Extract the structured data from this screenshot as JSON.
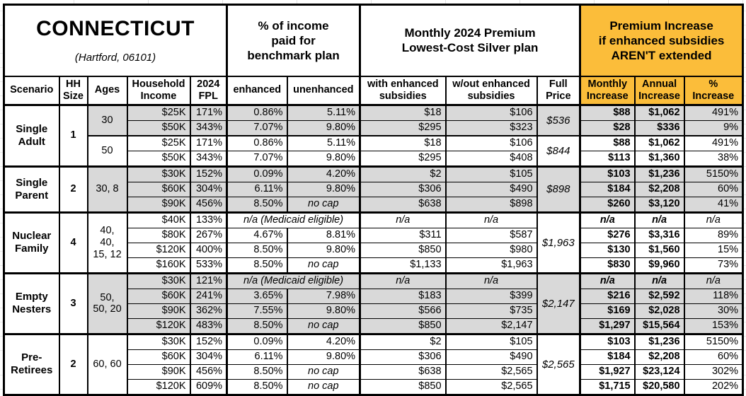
{
  "title": {
    "state": "CONNECTICUT",
    "location": "(Hartford, 06101)"
  },
  "section_headers": {
    "benchmark": "% of income\npaid for\nbenchmark plan",
    "premium": "Monthly 2024 Premium\nLowest-Cost Silver plan",
    "increase": "Premium Increase\nif enhanced subsidies\nAREN'T extended"
  },
  "columns": {
    "scenario": "Scenario",
    "hh_size": "HH\nSize",
    "ages": "Ages",
    "income": "Household\nIncome",
    "fpl": "2024\nFPL",
    "enhanced": "enhanced",
    "unenhanced": "unenhanced",
    "with_sub": "with enhanced\nsubsidies",
    "without_sub": "w/out enhanced\nsubsidies",
    "full_price": "Full\nPrice",
    "monthly": "Monthly\nIncrease",
    "annual": "Annual\nIncrease",
    "pct": "%\nIncrease"
  },
  "colors": {
    "accent": "#FBBD3A",
    "row_gray": "#D9D9D9",
    "border": "#000000"
  },
  "special_values": {
    "medicaid": "n/a (Medicaid eligible)",
    "no_cap": "no cap",
    "na": "n/a"
  },
  "groups": [
    {
      "scenario": "Single Adult",
      "hh_size": "1",
      "subgroups": [
        {
          "ages": "30",
          "shade": "gray",
          "full_price": "$536",
          "rows": [
            {
              "income": "$25K",
              "fpl": "171%",
              "enhanced": "0.86%",
              "unenhanced": "5.11%",
              "with_sub": "$18",
              "without_sub": "$106",
              "monthly": "$88",
              "annual": "$1,062",
              "pct": "491%"
            },
            {
              "income": "$50K",
              "fpl": "343%",
              "enhanced": "7.07%",
              "unenhanced": "9.80%",
              "with_sub": "$295",
              "without_sub": "$323",
              "monthly": "$28",
              "annual": "$336",
              "pct": "9%"
            }
          ]
        },
        {
          "ages": "50",
          "shade": "white",
          "full_price": "$844",
          "rows": [
            {
              "income": "$25K",
              "fpl": "171%",
              "enhanced": "0.86%",
              "unenhanced": "5.11%",
              "with_sub": "$18",
              "without_sub": "$106",
              "monthly": "$88",
              "annual": "$1,062",
              "pct": "491%"
            },
            {
              "income": "$50K",
              "fpl": "343%",
              "enhanced": "7.07%",
              "unenhanced": "9.80%",
              "with_sub": "$295",
              "without_sub": "$408",
              "monthly": "$113",
              "annual": "$1,360",
              "pct": "38%"
            }
          ]
        }
      ]
    },
    {
      "scenario": "Single Parent",
      "hh_size": "2",
      "subgroups": [
        {
          "ages": "30, 8",
          "shade": "gray",
          "full_price": "$898",
          "rows": [
            {
              "income": "$30K",
              "fpl": "152%",
              "enhanced": "0.09%",
              "unenhanced": "4.20%",
              "with_sub": "$2",
              "without_sub": "$105",
              "monthly": "$103",
              "annual": "$1,236",
              "pct": "5150%"
            },
            {
              "income": "$60K",
              "fpl": "304%",
              "enhanced": "6.11%",
              "unenhanced": "9.80%",
              "with_sub": "$306",
              "without_sub": "$490",
              "monthly": "$184",
              "annual": "$2,208",
              "pct": "60%"
            },
            {
              "income": "$90K",
              "fpl": "456%",
              "enhanced": "8.50%",
              "unenhanced": "no cap",
              "with_sub": "$638",
              "without_sub": "$898",
              "monthly": "$260",
              "annual": "$3,120",
              "pct": "41%"
            }
          ]
        }
      ]
    },
    {
      "scenario": "Nuclear Family",
      "hh_size": "4",
      "subgroups": [
        {
          "ages": "40, 40, 15, 12",
          "shade": "white",
          "full_price": "$1,963",
          "rows": [
            {
              "income": "$40K",
              "fpl": "133%",
              "enhanced": "n/a (Medicaid eligible)",
              "unenhanced": null,
              "with_sub": "n/a",
              "without_sub": "n/a",
              "monthly": "n/a",
              "annual": "n/a",
              "pct": "n/a"
            },
            {
              "income": "$80K",
              "fpl": "267%",
              "enhanced": "4.67%",
              "unenhanced": "8.81%",
              "with_sub": "$311",
              "without_sub": "$587",
              "monthly": "$276",
              "annual": "$3,316",
              "pct": "89%"
            },
            {
              "income": "$120K",
              "fpl": "400%",
              "enhanced": "8.50%",
              "unenhanced": "9.80%",
              "with_sub": "$850",
              "without_sub": "$980",
              "monthly": "$130",
              "annual": "$1,560",
              "pct": "15%"
            },
            {
              "income": "$160K",
              "fpl": "533%",
              "enhanced": "8.50%",
              "unenhanced": "no cap",
              "with_sub": "$1,133",
              "without_sub": "$1,963",
              "monthly": "$830",
              "annual": "$9,960",
              "pct": "73%"
            }
          ]
        }
      ]
    },
    {
      "scenario": "Empty Nesters",
      "hh_size": "3",
      "subgroups": [
        {
          "ages": "50, 50, 20",
          "shade": "gray",
          "full_price": "$2,147",
          "rows": [
            {
              "income": "$30K",
              "fpl": "121%",
              "enhanced": "n/a (Medicaid eligible)",
              "unenhanced": null,
              "with_sub": "n/a",
              "without_sub": "n/a",
              "monthly": "n/a",
              "annual": "n/a",
              "pct": "n/a"
            },
            {
              "income": "$60K",
              "fpl": "241%",
              "enhanced": "3.65%",
              "unenhanced": "7.98%",
              "with_sub": "$183",
              "without_sub": "$399",
              "monthly": "$216",
              "annual": "$2,592",
              "pct": "118%"
            },
            {
              "income": "$90K",
              "fpl": "362%",
              "enhanced": "7.55%",
              "unenhanced": "9.80%",
              "with_sub": "$566",
              "without_sub": "$735",
              "monthly": "$169",
              "annual": "$2,028",
              "pct": "30%"
            },
            {
              "income": "$120K",
              "fpl": "483%",
              "enhanced": "8.50%",
              "unenhanced": "no cap",
              "with_sub": "$850",
              "without_sub": "$2,147",
              "monthly": "$1,297",
              "annual": "$15,564",
              "pct": "153%"
            }
          ]
        }
      ]
    },
    {
      "scenario": "Pre-Retirees",
      "hh_size": "2",
      "subgroups": [
        {
          "ages": "60, 60",
          "shade": "white",
          "full_price": "$2,565",
          "rows": [
            {
              "income": "$30K",
              "fpl": "152%",
              "enhanced": "0.09%",
              "unenhanced": "4.20%",
              "with_sub": "$2",
              "without_sub": "$105",
              "monthly": "$103",
              "annual": "$1,236",
              "pct": "5150%"
            },
            {
              "income": "$60K",
              "fpl": "304%",
              "enhanced": "6.11%",
              "unenhanced": "9.80%",
              "with_sub": "$306",
              "without_sub": "$490",
              "monthly": "$184",
              "annual": "$2,208",
              "pct": "60%"
            },
            {
              "income": "$90K",
              "fpl": "456%",
              "enhanced": "8.50%",
              "unenhanced": "no cap",
              "with_sub": "$638",
              "without_sub": "$2,565",
              "monthly": "$1,927",
              "annual": "$23,124",
              "pct": "302%"
            },
            {
              "income": "$120K",
              "fpl": "609%",
              "enhanced": "8.50%",
              "unenhanced": "no cap",
              "with_sub": "$850",
              "without_sub": "$2,565",
              "monthly": "$1,715",
              "annual": "$20,580",
              "pct": "202%"
            }
          ]
        }
      ]
    }
  ]
}
